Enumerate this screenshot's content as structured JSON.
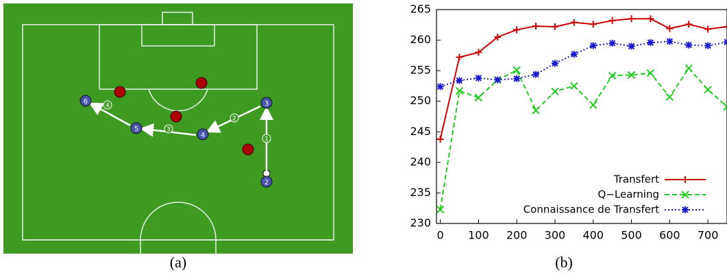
{
  "diagram": {
    "players": [
      {
        "label": "6"
      },
      {
        "label": "5"
      },
      {
        "label": "4"
      },
      {
        "label": "3"
      },
      {
        "label": "2"
      }
    ],
    "passes": [
      {
        "label": "1"
      },
      {
        "label": "2"
      },
      {
        "label": "3"
      },
      {
        "label": "4"
      }
    ],
    "caption": "(a)"
  },
  "chart_data": {
    "type": "line",
    "caption": "(b)",
    "x": [
      0,
      50,
      100,
      150,
      200,
      250,
      300,
      350,
      400,
      450,
      500,
      550,
      600,
      650,
      700,
      750
    ],
    "series": [
      {
        "name": "Transfert",
        "color": "#cc0000",
        "marker": "plus",
        "dash": "solid",
        "values": [
          243.8,
          257.2,
          258,
          260.5,
          261.7,
          262.3,
          262.2,
          262.9,
          262.6,
          263.2,
          263.5,
          263.5,
          261.9,
          262.6,
          261.8,
          262.2
        ]
      },
      {
        "name": "Q−Learning",
        "color": "#22cc22",
        "marker": "x",
        "dash": "dashed",
        "values": [
          232.3,
          251.7,
          250.6,
          253.5,
          255.1,
          248.5,
          251.6,
          252.5,
          249.4,
          254.2,
          254.3,
          254.6,
          250.7,
          255.4,
          251.9,
          249.1
        ]
      },
      {
        "name": "Connaissance de Transfert",
        "color": "#1a1acc",
        "marker": "star",
        "dash": "dotted",
        "values": [
          252.4,
          253.4,
          253.8,
          253.5,
          253.7,
          254.4,
          256.2,
          257.7,
          259.1,
          259.5,
          259,
          259.6,
          259.8,
          259.2,
          259.1,
          259.7
        ]
      }
    ],
    "xlim": [
      -10,
      750
    ],
    "ylim": [
      230,
      265
    ],
    "xticks": [
      0,
      100,
      200,
      300,
      400,
      500,
      600,
      700
    ],
    "yticks": [
      230,
      235,
      240,
      245,
      250,
      255,
      260,
      265
    ],
    "legend": "lower right"
  }
}
